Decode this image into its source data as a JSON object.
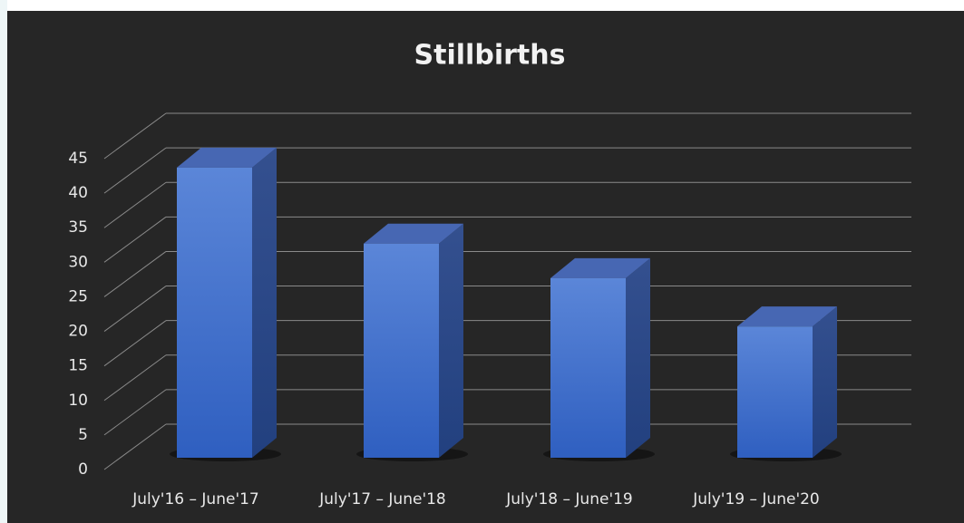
{
  "chart_data": {
    "type": "bar3d",
    "title": "Stillbirths",
    "categories": [
      "July'16 – June'17",
      "July'17 – June'18",
      "July'18 – June'19",
      "July'19 – June'20"
    ],
    "values": [
      42,
      31,
      26,
      19
    ],
    "color": "#4a78d4",
    "ylim": [
      0,
      45
    ],
    "yticks": [
      0,
      5,
      10,
      15,
      20,
      25,
      30,
      35,
      40,
      45
    ],
    "grid": true
  }
}
